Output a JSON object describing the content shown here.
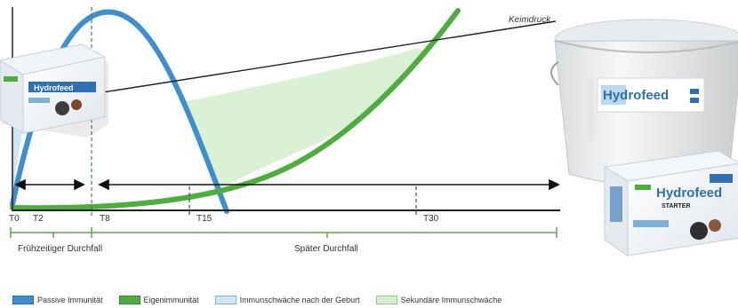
{
  "ticks": [
    {
      "label": "T0",
      "x": 0
    },
    {
      "label": "T2",
      "x": 2
    },
    {
      "label": "T8",
      "x": 8
    },
    {
      "label": "T15",
      "x": 15
    },
    {
      "label": "T30",
      "x": 30
    }
  ],
  "curves": {
    "keimdruck_label": "Keimdruck"
  },
  "phases": {
    "early": "Frühzeitiger Durchfall",
    "late": "Später Durchfall"
  },
  "legend": [
    {
      "label": "Passive Immunität",
      "color": "#3d8fd0",
      "border": "#2e6fa8"
    },
    {
      "label": "Eigenimmunität",
      "color": "#4caf3c",
      "border": "#2f8a26"
    },
    {
      "label": "Immunschwäche nach der Geburt",
      "color": "#cfe6f7",
      "border": "#7fb2d8"
    },
    {
      "label": "Sekundäre Immunschwäche",
      "color": "#d6f0cf",
      "border": "#8ccb7e"
    }
  ],
  "products": {
    "bucket_brand": "Hydrofeed",
    "box_brand": "Hydrofeed",
    "box_sub": "STARTER",
    "small_box_brand": "Hydrofeed"
  }
}
